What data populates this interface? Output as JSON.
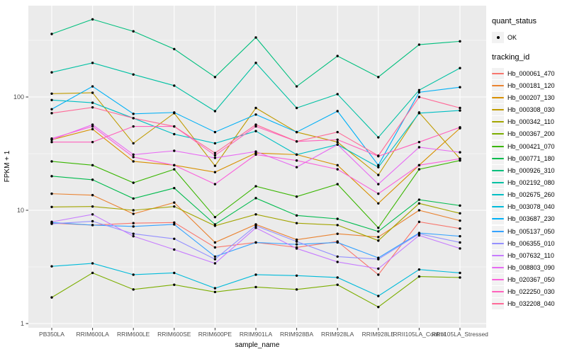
{
  "figure": {
    "panel_bg": "#EBEBEB",
    "grid_color": "#FFFFFF",
    "tick_text_color": "#4D4D4D",
    "axis_title_color": "#000000",
    "point_color": "#000000",
    "legend_key_bg": "#F2F2F2"
  },
  "chart_data": {
    "type": "line",
    "title": "",
    "xlabel": "sample_name",
    "ylabel": "FPKM + 1",
    "y_scale": "log10",
    "ylim": [
      0.92,
      640
    ],
    "y_ticks": [
      1,
      10,
      100
    ],
    "y_minor_ticks": [
      3.162,
      31.62,
      316.2
    ],
    "grid": true,
    "legend_position": "right",
    "legend": {
      "status_title": "quant_status",
      "status_value": "OK",
      "series_title": "tracking_id"
    },
    "categories": [
      "PB350LA",
      "RRIM600LA",
      "RRIM600LE",
      "RRIM600SE",
      "RRIM600PE",
      "RRIM901LA",
      "RRIM928BA",
      "RRIM928LA",
      "RRIM928LE",
      "RRII105LA_Control",
      "RRII105LA_Stressed"
    ],
    "series": [
      {
        "name": "Hb_000061_470",
        "color": "#F8766D",
        "values": [
          7.7,
          7.4,
          7.7,
          7.8,
          4.7,
          5.2,
          4.7,
          5.3,
          2.7,
          7.9,
          6.9
        ]
      },
      {
        "name": "Hb_000181_120",
        "color": "#EA8331",
        "values": [
          14,
          13.6,
          9.3,
          11.7,
          5.2,
          7.5,
          5.5,
          6.2,
          5.8,
          10,
          8.1
        ]
      },
      {
        "name": "Hb_000207_130",
        "color": "#D89000",
        "values": [
          42,
          52,
          27,
          25,
          21.7,
          32,
          31,
          25,
          11.5,
          25,
          53
        ]
      },
      {
        "name": "Hb_000308_030",
        "color": "#C09B00",
        "values": [
          107,
          109,
          39,
          72,
          24.7,
          80,
          49,
          40,
          20.5,
          73,
          28.5
        ]
      },
      {
        "name": "Hb_000342_110",
        "color": "#A3A500",
        "values": [
          10.7,
          10.8,
          10,
          10.8,
          7.3,
          9.2,
          7.7,
          7.4,
          5.4,
          11.5,
          9.4
        ]
      },
      {
        "name": "Hb_000367_200",
        "color": "#7CAE00",
        "values": [
          1.7,
          2.8,
          2.0,
          2.2,
          1.9,
          2.1,
          2.0,
          2.2,
          1.4,
          2.6,
          2.55
        ]
      },
      {
        "name": "Hb_000421_070",
        "color": "#39B600",
        "values": [
          27,
          25,
          17.5,
          23,
          8.7,
          16.3,
          13.2,
          17,
          7.0,
          23,
          27.5
        ]
      },
      {
        "name": "Hb_000771_180",
        "color": "#00BB4E",
        "values": [
          20,
          18.6,
          12.7,
          15.7,
          7.5,
          12.8,
          9.0,
          8.4,
          6.5,
          12.4,
          11
        ]
      },
      {
        "name": "Hb_000926_310",
        "color": "#00BF7D",
        "values": [
          360,
          485,
          380,
          265,
          150,
          335,
          124,
          230,
          150,
          290,
          310
        ]
      },
      {
        "name": "Hb_002192_080",
        "color": "#00C1A3",
        "values": [
          165,
          200,
          158,
          126,
          75,
          200,
          80,
          106,
          44,
          115,
          180
        ]
      },
      {
        "name": "Hb_002675_260",
        "color": "#00BFC4",
        "values": [
          94,
          89,
          65,
          47,
          39,
          50,
          31,
          38,
          24,
          72,
          76
        ]
      },
      {
        "name": "Hb_003078_040",
        "color": "#00BBDA",
        "values": [
          3.2,
          3.4,
          2.7,
          2.8,
          2.05,
          2.7,
          2.65,
          2.55,
          1.75,
          3.0,
          2.8
        ]
      },
      {
        "name": "Hb_003687_230",
        "color": "#00B0F6",
        "values": [
          78,
          124,
          71,
          73,
          49,
          70,
          49,
          75,
          25,
          110,
          122
        ]
      },
      {
        "name": "Hb_005137_050",
        "color": "#35A2FF",
        "values": [
          7.8,
          7.4,
          7.2,
          7.5,
          3.9,
          5.2,
          5.0,
          5.2,
          3.8,
          6.3,
          5.9
        ]
      },
      {
        "name": "Hb_006355_010",
        "color": "#9590FF",
        "values": [
          7.6,
          8.0,
          6.2,
          5.6,
          3.7,
          7.3,
          5.3,
          3.9,
          3.7,
          6.2,
          5.2
        ]
      },
      {
        "name": "Hb_007632_110",
        "color": "#C77CFF",
        "values": [
          7.9,
          9.2,
          5.9,
          4.5,
          3.4,
          7.0,
          4.6,
          3.5,
          3.05,
          6.0,
          4.6
        ]
      },
      {
        "name": "Hb_008803_090",
        "color": "#E76BF3",
        "values": [
          42,
          57,
          31,
          33.5,
          29,
          33,
          24,
          38,
          17,
          36,
          32.5
        ]
      },
      {
        "name": "Hb_020367_050",
        "color": "#FA62DB",
        "values": [
          43,
          55,
          29.5,
          25,
          17,
          31,
          27.5,
          23,
          14,
          25,
          28.5
        ]
      },
      {
        "name": "Hb_022250_030",
        "color": "#FF62BC",
        "values": [
          40,
          40,
          55,
          55,
          30.5,
          55,
          40.5,
          42,
          30,
          40,
          54
        ]
      },
      {
        "name": "Hb_032208_040",
        "color": "#FF6A98",
        "values": [
          72,
          81,
          65,
          55,
          32,
          57,
          40.5,
          49,
          30.3,
          100,
          80
        ]
      }
    ]
  }
}
